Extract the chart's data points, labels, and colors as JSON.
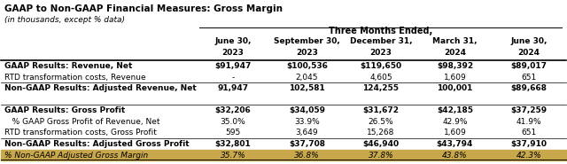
{
  "title": "GAAP to Non-GAAP Financial Measures: Gross Margin",
  "subtitle": "(in thousands, except % data)",
  "header_group": "Three Months Ended,",
  "columns": [
    "June 30,\n2023",
    "September 30,\n2023",
    "December 31,\n2023",
    "March 31,\n2024",
    "June 30,\n2024"
  ],
  "rows": [
    {
      "label": "GAAP Results: Revenue, Net",
      "bold": true,
      "values": [
        "$91,947",
        "$100,536",
        "$119,650",
        "$98,392",
        "$89,017"
      ],
      "border_top": true
    },
    {
      "label": "RTD transformation costs, Revenue",
      "bold": false,
      "values": [
        "-",
        "2,045",
        "4,605",
        "1,609",
        "651"
      ],
      "border_top": false
    },
    {
      "label": "Non-GAAP Results: Adjusted Revenue, Net",
      "bold": true,
      "values": [
        "91,947",
        "102,581",
        "124,255",
        "100,001",
        "$89,668"
      ],
      "border_top": true
    },
    {
      "label": "",
      "bold": false,
      "values": [
        "",
        "",
        "",
        "",
        ""
      ],
      "border_top": false
    },
    {
      "label": "GAAP Results: Gross Profit",
      "bold": true,
      "values": [
        "$32,206",
        "$34,059",
        "$31,672",
        "$42,185",
        "$37,259"
      ],
      "border_top": true
    },
    {
      "label": "   % GAAP Gross Profit of Revenue, Net",
      "bold": false,
      "values": [
        "35.0%",
        "33.9%",
        "26.5%",
        "42.9%",
        "41.9%"
      ],
      "border_top": false
    },
    {
      "label": "RTD transformation costs, Gross Profit",
      "bold": false,
      "values": [
        "595",
        "3,649",
        "15,268",
        "1,609",
        "651"
      ],
      "border_top": false
    },
    {
      "label": "Non-GAAP Results: Adjusted Gross Profit",
      "bold": true,
      "values": [
        "$32,801",
        "$37,708",
        "$46,940",
        "$43,794",
        "$37,910"
      ],
      "border_top": true
    },
    {
      "label": "% Non-GAAP Adjusted Gross Margin",
      "bold": false,
      "italic": true,
      "values": [
        "35.7%",
        "36.8%",
        "37.8%",
        "43.8%",
        "42.3%"
      ],
      "highlight": true,
      "border_top": false
    }
  ],
  "highlight_color": "#C9A84C",
  "background_color": "#ffffff",
  "title_fontsize": 7.5,
  "subtitle_fontsize": 6.5,
  "header_fontsize": 6.5,
  "data_fontsize": 6.5
}
